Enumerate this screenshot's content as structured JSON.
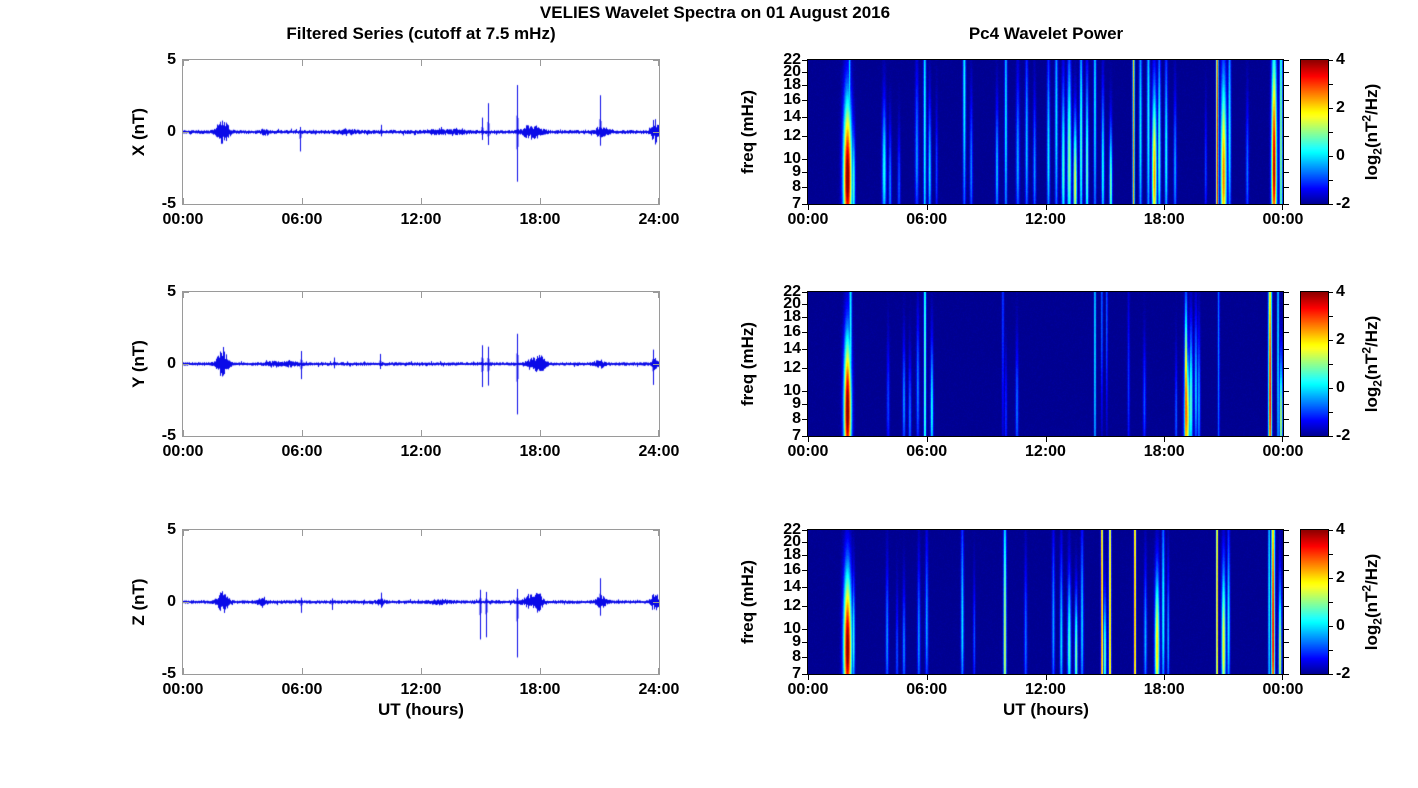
{
  "figure": {
    "title": "VELIES Wavelet Spectra on 01 August 2016",
    "left": {
      "title": "Filtered Series (cutoff at 7.5 mHz)",
      "xlabel": "UT (hours)"
    },
    "right": {
      "title": "Pc4 Wavelet Power",
      "xlabel": "UT (hours)"
    },
    "colorbar": {
      "label": "log2(nT2/Hz)",
      "p1": "log",
      "sub": "2",
      "p2": "(nT",
      "sup": "2",
      "p3": "/Hz)",
      "range": [
        -2,
        4
      ],
      "tick_labels": [
        4,
        2,
        0,
        -2
      ],
      "minor_ticks": [
        4,
        3,
        2,
        1,
        0,
        -1,
        -2
      ],
      "colormap": "jet"
    },
    "colors": {
      "line": "#0a0ae8",
      "heatmap_low": "#00008f",
      "heatmap_high": "#8f0000",
      "box_gray": "#9a9a9a"
    }
  },
  "chart_data": [
    {
      "id": "ts-x",
      "type": "line",
      "ylabel": "X (nT)",
      "ylim": [
        -5,
        5
      ],
      "yticks": [
        5,
        0,
        -5
      ],
      "x_range_hours": [
        0,
        24
      ],
      "xtick_labels": [
        "00:00",
        "06:00",
        "12:00",
        "18:00",
        "24:00"
      ],
      "noise_sigma_nT": 0.055,
      "spike_format": [
        "t_hours",
        "up_nT",
        "down_nT"
      ],
      "spikes": [
        [
          5.92,
          0.35,
          1.35
        ],
        [
          10.0,
          0.5,
          0.3
        ],
        [
          15.06,
          1.0,
          0.55
        ],
        [
          15.36,
          2.0,
          0.9
        ],
        [
          16.83,
          3.26,
          3.45
        ],
        [
          21.05,
          2.55,
          0.95
        ]
      ],
      "burst_format": [
        "t_hours",
        "width_hours",
        "amplitude_nT"
      ],
      "bursts": [
        [
          2.0,
          0.22,
          0.85
        ],
        [
          4.1,
          0.2,
          0.18
        ],
        [
          8.3,
          0.35,
          0.13
        ],
        [
          12.9,
          0.4,
          0.15
        ],
        [
          13.9,
          0.25,
          0.18
        ],
        [
          17.6,
          0.35,
          0.5
        ],
        [
          21.1,
          0.25,
          0.35
        ],
        [
          23.8,
          0.14,
          0.85
        ]
      ]
    },
    {
      "id": "ts-y",
      "type": "line",
      "ylabel": "Y (nT)",
      "ylim": [
        -5,
        5
      ],
      "yticks": [
        5,
        0,
        -5
      ],
      "x_range_hours": [
        0,
        24
      ],
      "xtick_labels": [
        "00:00",
        "06:00",
        "12:00",
        "18:00",
        "24:00"
      ],
      "noise_sigma_nT": 0.05,
      "spike_format": [
        "t_hours",
        "up_nT",
        "down_nT"
      ],
      "spikes": [
        [
          5.95,
          0.9,
          1.05
        ],
        [
          7.6,
          0.45,
          0.3
        ],
        [
          9.95,
          0.7,
          0.35
        ],
        [
          15.08,
          1.3,
          1.6
        ],
        [
          15.38,
          1.2,
          1.5
        ],
        [
          16.84,
          2.1,
          3.5
        ],
        [
          23.7,
          1.0,
          1.45
        ]
      ],
      "burst_format": [
        "t_hours",
        "width_hours",
        "amplitude_nT"
      ],
      "bursts": [
        [
          2.0,
          0.2,
          1.1
        ],
        [
          4.6,
          0.3,
          0.12
        ],
        [
          5.4,
          0.3,
          0.15
        ],
        [
          17.8,
          0.3,
          0.45
        ],
        [
          18.1,
          0.15,
          0.3
        ],
        [
          21.0,
          0.2,
          0.28
        ],
        [
          23.8,
          0.1,
          0.4
        ]
      ]
    },
    {
      "id": "ts-z",
      "type": "line",
      "ylabel": "Z (nT)",
      "ylim": [
        -5,
        5
      ],
      "yticks": [
        5,
        0,
        -5
      ],
      "x_range_hours": [
        0,
        24
      ],
      "xtick_labels": [
        "00:00",
        "06:00",
        "12:00",
        "18:00",
        "24:00"
      ],
      "noise_sigma_nT": 0.05,
      "spike_format": [
        "t_hours",
        "up_nT",
        "down_nT"
      ],
      "spikes": [
        [
          5.95,
          0.3,
          0.75
        ],
        [
          7.5,
          0.25,
          0.55
        ],
        [
          10.0,
          0.65,
          0.4
        ],
        [
          14.95,
          0.85,
          2.6
        ],
        [
          15.3,
          0.7,
          2.45
        ],
        [
          16.83,
          0.9,
          3.85
        ],
        [
          21.0,
          1.65,
          0.95
        ]
      ],
      "burst_format": [
        "t_hours",
        "width_hours",
        "amplitude_nT"
      ],
      "bursts": [
        [
          2.0,
          0.2,
          0.8
        ],
        [
          4.0,
          0.2,
          0.25
        ],
        [
          10.0,
          0.15,
          0.2
        ],
        [
          13.0,
          0.3,
          0.15
        ],
        [
          17.6,
          0.3,
          0.5
        ],
        [
          17.95,
          0.12,
          0.55
        ],
        [
          21.1,
          0.2,
          0.4
        ],
        [
          23.8,
          0.13,
          0.7
        ]
      ]
    },
    {
      "id": "sp-x",
      "type": "heatmap",
      "ylabel": "freq (mHz)",
      "yscale": "log",
      "ylim_mhz": [
        7,
        22
      ],
      "yticks": [
        22,
        20,
        18,
        16,
        14,
        12,
        10,
        9,
        8,
        7
      ],
      "x_range_hours": [
        0,
        24
      ],
      "xtick_labels": [
        "00:00",
        "06:00",
        "12:00",
        "18:00",
        "00:00"
      ],
      "value_range_log2": [
        -2,
        4
      ],
      "event_format": [
        "t_hours",
        "width_hours",
        "f_peak_mhz",
        "peak_log2_power",
        "spread_up_oct",
        "spread_down_oct"
      ],
      "events": [
        [
          2.0,
          0.15,
          8.5,
          4.3,
          0.62,
          0.5
        ],
        [
          2.3,
          0.06,
          8,
          0.6,
          0.45,
          0.4
        ],
        [
          2.1,
          0.04,
          18,
          0.0,
          1.0,
          1.5
        ],
        [
          3.85,
          0.07,
          9,
          0.4,
          0.55,
          0.45
        ],
        [
          4.15,
          0.05,
          8,
          -0.5,
          0.5,
          0.4
        ],
        [
          4.6,
          0.05,
          8,
          -0.8,
          0.45,
          0.4
        ],
        [
          5.5,
          0.06,
          10,
          -0.4,
          0.7,
          0.5
        ],
        [
          5.9,
          0.045,
          13,
          0.4,
          1.5,
          1.5
        ],
        [
          6.15,
          0.05,
          9,
          0.1,
          0.55,
          0.45
        ],
        [
          6.5,
          0.04,
          9,
          -0.9,
          0.5,
          0.4
        ],
        [
          7.9,
          0.05,
          17,
          0.3,
          1.1,
          1.1
        ],
        [
          8.25,
          0.05,
          9,
          -0.5,
          0.6,
          0.45
        ],
        [
          9.55,
          0.05,
          9,
          -0.1,
          0.55,
          0.45
        ],
        [
          10.0,
          0.045,
          13,
          0.2,
          1.2,
          1.0
        ],
        [
          10.6,
          0.06,
          9.5,
          -0.3,
          0.7,
          0.5
        ],
        [
          11.05,
          0.05,
          11,
          -0.1,
          0.8,
          0.7
        ],
        [
          11.45,
          0.05,
          9,
          -0.4,
          0.6,
          0.45
        ],
        [
          12.15,
          0.05,
          10,
          0.2,
          0.85,
          0.6
        ],
        [
          12.55,
          0.05,
          13,
          0.1,
          1.0,
          0.9
        ],
        [
          12.9,
          0.06,
          9,
          0.7,
          0.7,
          0.5
        ],
        [
          13.2,
          0.07,
          9.5,
          1.1,
          0.85,
          0.6
        ],
        [
          13.5,
          0.06,
          8,
          1.7,
          0.55,
          0.45
        ],
        [
          13.8,
          0.05,
          11,
          0.7,
          1.0,
          0.8
        ],
        [
          14.1,
          0.05,
          9,
          0.9,
          0.75,
          0.55
        ],
        [
          14.5,
          0.045,
          15,
          0.2,
          1.2,
          1.1
        ],
        [
          14.9,
          0.05,
          9,
          0.4,
          0.65,
          0.5
        ],
        [
          15.3,
          0.05,
          8,
          1.0,
          0.5,
          0.4
        ],
        [
          16.45,
          0.035,
          11,
          2.4,
          2.4,
          2.4
        ],
        [
          16.8,
          0.05,
          12,
          0.2,
          1.1,
          0.9
        ],
        [
          17.2,
          0.05,
          13,
          0.3,
          1.2,
          1.0
        ],
        [
          17.5,
          0.08,
          8.5,
          2.5,
          0.7,
          0.5
        ],
        [
          17.75,
          0.05,
          10,
          0.8,
          0.9,
          0.6
        ],
        [
          18.1,
          0.05,
          10,
          0.4,
          0.85,
          0.6
        ],
        [
          18.55,
          0.05,
          9,
          -0.3,
          0.6,
          0.45
        ],
        [
          20.1,
          0.04,
          9,
          -0.9,
          0.5,
          0.4
        ],
        [
          20.68,
          0.04,
          10,
          3.4,
          2.2,
          2.2
        ],
        [
          21.0,
          0.1,
          8.5,
          2.7,
          0.8,
          0.55
        ],
        [
          21.3,
          0.05,
          12,
          0.3,
          1.0,
          0.8
        ],
        [
          22.2,
          0.05,
          9,
          -0.6,
          0.55,
          0.45
        ],
        [
          23.55,
          0.09,
          9,
          3.9,
          0.95,
          0.6
        ],
        [
          23.9,
          0.05,
          11,
          1.2,
          1.7,
          1.7
        ]
      ]
    },
    {
      "id": "sp-y",
      "type": "heatmap",
      "ylabel": "freq (mHz)",
      "yscale": "log",
      "ylim_mhz": [
        7,
        22
      ],
      "yticks": [
        22,
        20,
        18,
        16,
        14,
        12,
        10,
        9,
        8,
        7
      ],
      "x_range_hours": [
        0,
        24
      ],
      "xtick_labels": [
        "00:00",
        "06:00",
        "12:00",
        "18:00",
        "00:00"
      ],
      "value_range_log2": [
        -2,
        4
      ],
      "event_format": [
        "t_hours",
        "width_hours",
        "f_peak_mhz",
        "peak_log2_power",
        "spread_up_oct",
        "spread_down_oct"
      ],
      "events": [
        [
          2.0,
          0.13,
          8.5,
          4.3,
          0.58,
          0.5
        ],
        [
          2.15,
          0.05,
          16,
          0.3,
          1.3,
          1.0
        ],
        [
          4.05,
          0.05,
          9,
          -0.9,
          0.5,
          0.4
        ],
        [
          4.85,
          0.05,
          9,
          -0.4,
          0.5,
          0.4
        ],
        [
          5.15,
          0.05,
          8,
          -0.6,
          0.5,
          0.4
        ],
        [
          5.55,
          0.05,
          10,
          -0.5,
          0.6,
          0.5
        ],
        [
          5.91,
          0.04,
          12,
          1.0,
          1.8,
          1.8
        ],
        [
          6.26,
          0.05,
          8.5,
          0.4,
          0.55,
          0.45
        ],
        [
          9.85,
          0.04,
          20,
          -0.9,
          0.6,
          1.2
        ],
        [
          10.0,
          0.04,
          8,
          -1.0,
          0.5,
          0.4
        ],
        [
          10.56,
          0.05,
          8.5,
          -0.6,
          0.55,
          0.45
        ],
        [
          14.5,
          0.035,
          14,
          0.3,
          1.5,
          1.5
        ],
        [
          14.85,
          0.03,
          18,
          -0.5,
          1.0,
          0.8
        ],
        [
          15.1,
          0.03,
          18,
          -0.6,
          1.0,
          0.8
        ],
        [
          16.2,
          0.04,
          10,
          -1.0,
          0.8,
          0.6
        ],
        [
          17.0,
          0.05,
          9,
          -0.8,
          0.5,
          0.4
        ],
        [
          18.6,
          0.04,
          8,
          -0.7,
          0.5,
          0.4
        ],
        [
          19.1,
          0.05,
          8.5,
          3.3,
          0.8,
          0.55
        ],
        [
          19.15,
          0.1,
          8,
          2.2,
          0.5,
          0.4
        ],
        [
          19.35,
          0.06,
          9,
          0.8,
          0.6,
          0.45
        ],
        [
          19.6,
          0.05,
          10,
          0.0,
          0.6,
          0.5
        ],
        [
          19.75,
          0.05,
          9,
          -0.3,
          0.6,
          0.5
        ],
        [
          20.75,
          0.035,
          14,
          -0.5,
          1.5,
          1.5
        ],
        [
          23.35,
          0.06,
          9,
          3.5,
          1.6,
          0.8
        ],
        [
          23.75,
          0.035,
          14,
          0.3,
          1.5,
          1.5
        ],
        [
          23.9,
          0.05,
          8,
          1.5,
          0.5,
          0.4
        ]
      ]
    },
    {
      "id": "sp-z",
      "type": "heatmap",
      "ylabel": "freq (mHz)",
      "yscale": "log",
      "ylim_mhz": [
        7,
        22
      ],
      "yticks": [
        22,
        20,
        18,
        16,
        14,
        12,
        10,
        9,
        8,
        7
      ],
      "x_range_hours": [
        0,
        24
      ],
      "xtick_labels": [
        "00:00",
        "06:00",
        "12:00",
        "18:00",
        "00:00"
      ],
      "value_range_log2": [
        -2,
        4
      ],
      "event_format": [
        "t_hours",
        "width_hours",
        "f_peak_mhz",
        "peak_log2_power",
        "spread_up_oct",
        "spread_down_oct"
      ],
      "events": [
        [
          2.0,
          0.14,
          8.5,
          4.2,
          0.6,
          0.5
        ],
        [
          2.3,
          0.05,
          9,
          0.4,
          0.5,
          0.4
        ],
        [
          4.0,
          0.05,
          9,
          -0.4,
          0.6,
          0.45
        ],
        [
          4.5,
          0.04,
          8,
          -0.8,
          0.5,
          0.4
        ],
        [
          4.85,
          0.05,
          8.5,
          -0.5,
          0.5,
          0.4
        ],
        [
          5.6,
          0.05,
          9,
          -0.4,
          0.65,
          0.5
        ],
        [
          6.0,
          0.05,
          10,
          -0.3,
          0.7,
          0.5
        ],
        [
          7.8,
          0.05,
          10,
          0.1,
          0.9,
          0.55
        ],
        [
          8.4,
          0.04,
          9,
          -0.8,
          0.5,
          0.4
        ],
        [
          9.95,
          0.05,
          8,
          1.6,
          1.4,
          0.5
        ],
        [
          11.0,
          0.05,
          9,
          -0.6,
          0.65,
          0.5
        ],
        [
          12.4,
          0.05,
          10,
          -0.3,
          0.75,
          0.55
        ],
        [
          12.8,
          0.05,
          9,
          0.1,
          0.7,
          0.5
        ],
        [
          13.2,
          0.06,
          8.5,
          0.7,
          0.6,
          0.45
        ],
        [
          13.55,
          0.05,
          8,
          1.1,
          0.5,
          0.4
        ],
        [
          13.85,
          0.05,
          10,
          0.0,
          0.8,
          0.6
        ],
        [
          14.85,
          0.035,
          10,
          3.4,
          2.3,
          2.3
        ],
        [
          15.0,
          0.05,
          8,
          0.9,
          0.5,
          0.4
        ],
        [
          15.26,
          0.04,
          10,
          2.7,
          2.3,
          2.3
        ],
        [
          16.52,
          0.035,
          11,
          3.3,
          2.3,
          2.3
        ],
        [
          17.05,
          0.05,
          9,
          -0.2,
          0.6,
          0.45
        ],
        [
          17.64,
          0.08,
          8.5,
          2.1,
          0.6,
          0.5
        ],
        [
          17.95,
          0.05,
          11,
          0.4,
          0.9,
          0.7
        ],
        [
          18.2,
          0.04,
          9,
          -0.2,
          0.6,
          0.45
        ],
        [
          20.67,
          0.03,
          12,
          3.2,
          2.3,
          2.3
        ],
        [
          21.0,
          0.07,
          8.5,
          1.9,
          0.65,
          0.5
        ],
        [
          21.25,
          0.05,
          10,
          0.3,
          0.8,
          0.6
        ],
        [
          23.3,
          0.035,
          13,
          0.4,
          1.4,
          1.4
        ],
        [
          23.5,
          0.06,
          9,
          3.6,
          1.7,
          0.8
        ],
        [
          23.85,
          0.05,
          8,
          1.7,
          0.6,
          0.45
        ]
      ]
    }
  ]
}
